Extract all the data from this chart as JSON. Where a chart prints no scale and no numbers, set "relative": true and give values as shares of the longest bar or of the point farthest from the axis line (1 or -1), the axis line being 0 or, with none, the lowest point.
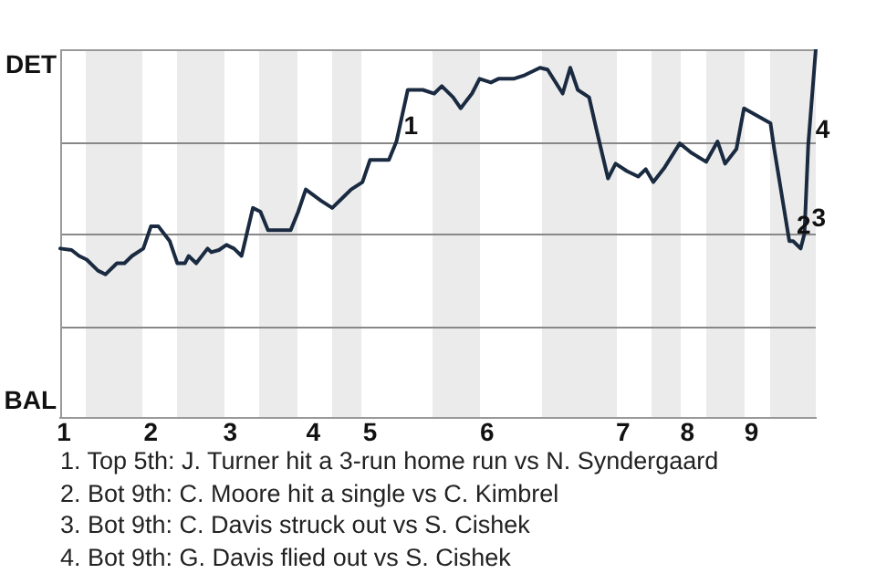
{
  "chart_data": {
    "type": "line",
    "relative": true,
    "categories": [
      null,
      "1",
      null,
      null,
      null,
      null,
      null,
      null,
      null,
      null,
      null,
      null,
      null,
      null,
      null,
      null,
      null,
      null,
      null,
      null,
      null,
      null,
      null,
      null,
      "2",
      null,
      null,
      null,
      null,
      null,
      null,
      null,
      null,
      null,
      null,
      null,
      null,
      null,
      null,
      null,
      null,
      null,
      null,
      null,
      null,
      "3",
      null,
      null,
      null,
      null,
      null,
      null,
      null,
      null,
      null,
      null,
      null,
      null,
      null,
      null,
      null,
      null,
      null,
      null,
      null,
      null,
      null,
      "4",
      null,
      null,
      null,
      null,
      null,
      null,
      null,
      null,
      null,
      null,
      null,
      null,
      null,
      null,
      "5",
      null,
      null,
      null,
      null,
      null,
      null,
      null,
      null,
      null,
      null,
      null,
      null,
      null,
      null,
      null,
      null,
      null,
      null,
      null,
      null,
      null,
      null,
      null,
      null,
      null,
      null,
      null,
      null,
      null,
      null,
      "6",
      null,
      null,
      null,
      null,
      null,
      null,
      null,
      null,
      null,
      null,
      null,
      null,
      null,
      null,
      null,
      null,
      null,
      null,
      null,
      null,
      null,
      null,
      null,
      null,
      null,
      null,
      null,
      null,
      null,
      null,
      null,
      null,
      null,
      null,
      null,
      "7",
      null,
      null,
      null,
      null,
      null,
      null,
      null,
      null,
      null,
      null,
      null,
      null,
      null,
      null,
      null,
      null,
      "8",
      null,
      null,
      null,
      null,
      null,
      null,
      null,
      null,
      null,
      null,
      null,
      null,
      null,
      null,
      null,
      null,
      "9",
      null,
      null,
      null,
      null,
      null,
      null,
      null,
      null,
      null,
      null,
      null,
      null,
      null,
      null,
      null,
      null,
      null
    ],
    "series": [
      {
        "color": "#1a2a40",
        "values": [
          0.46,
          null,
          null,
          0.456,
          null,
          0.44,
          null,
          0.43,
          null,
          null,
          0.4,
          null,
          0.39,
          null,
          null,
          0.42,
          null,
          0.42,
          null,
          0.44,
          null,
          null,
          0.46,
          null,
          0.52,
          null,
          0.52,
          null,
          null,
          0.48,
          null,
          0.42,
          null,
          0.42,
          0.44,
          null,
          0.42,
          null,
          null,
          0.46,
          0.45,
          null,
          0.456,
          null,
          0.47,
          null,
          0.46,
          null,
          0.44,
          null,
          null,
          0.57,
          null,
          0.56,
          null,
          0.51,
          null,
          null,
          null,
          null,
          null,
          0.51,
          null,
          0.56,
          null,
          0.62,
          null,
          null,
          null,
          0.59,
          null,
          null,
          0.57,
          null,
          null,
          0.6,
          null,
          0.62,
          null,
          null,
          0.64,
          null,
          0.7,
          null,
          null,
          null,
          null,
          0.7,
          null,
          0.75,
          null,
          null,
          0.89,
          null,
          null,
          null,
          0.89,
          null,
          null,
          0.88,
          null,
          0.9,
          null,
          null,
          0.87,
          null,
          0.84,
          null,
          null,
          0.88,
          null,
          0.92,
          null,
          null,
          0.91,
          null,
          0.92,
          null,
          null,
          null,
          0.92,
          null,
          null,
          0.93,
          null,
          null,
          null,
          0.95,
          null,
          0.945,
          null,
          null,
          null,
          0.88,
          null,
          0.95,
          null,
          0.89,
          null,
          null,
          0.87,
          null,
          0.78,
          null,
          null,
          0.65,
          null,
          0.69,
          null,
          null,
          0.67,
          null,
          null,
          0.655,
          null,
          0.675,
          null,
          0.64,
          null,
          null,
          0.68,
          null,
          null,
          null,
          0.745,
          null,
          null,
          0.72,
          null,
          null,
          null,
          0.695,
          null,
          null,
          0.75,
          null,
          0.69,
          null,
          null,
          0.73,
          null,
          0.84,
          null,
          null,
          null,
          null,
          null,
          null,
          0.8,
          0.73,
          null,
          null,
          null,
          0.48,
          0.48,
          null,
          0.46,
          0.5,
          0.74,
          null,
          1.0
        ],
        "value_labels": [
          null,
          null,
          null,
          null,
          null,
          null,
          null,
          null,
          null,
          null,
          null,
          null,
          null,
          null,
          null,
          null,
          null,
          null,
          null,
          null,
          null,
          null,
          null,
          null,
          null,
          null,
          null,
          null,
          null,
          null,
          null,
          null,
          null,
          null,
          null,
          null,
          null,
          null,
          null,
          null,
          null,
          null,
          null,
          null,
          null,
          null,
          null,
          null,
          null,
          null,
          null,
          null,
          null,
          null,
          null,
          null,
          null,
          null,
          null,
          null,
          null,
          null,
          null,
          null,
          null,
          null,
          null,
          null,
          null,
          null,
          null,
          null,
          null,
          null,
          null,
          null,
          null,
          null,
          null,
          null,
          null,
          null,
          null,
          null,
          null,
          null,
          null,
          null,
          null,
          null,
          null,
          null,
          null,
          null,
          null,
          null,
          null,
          null,
          null,
          null,
          null,
          null,
          null,
          null,
          null,
          null,
          null,
          null,
          null,
          null,
          null,
          null,
          null,
          null,
          null,
          null,
          null,
          null,
          null,
          null,
          null,
          null,
          null,
          null,
          null,
          null,
          null,
          null,
          null,
          null,
          null,
          null,
          null,
          null,
          null,
          null,
          null,
          null,
          null,
          null,
          null,
          null,
          null,
          null,
          null,
          null,
          null,
          null,
          null,
          null,
          null,
          null,
          null,
          null,
          null,
          null,
          null,
          null,
          null,
          null,
          null,
          null,
          null,
          null,
          null,
          null,
          null,
          null,
          null,
          null,
          null,
          null,
          null,
          null,
          null,
          null,
          null,
          null,
          null,
          null,
          null,
          null,
          null,
          null,
          null,
          null,
          null,
          null,
          null,
          null,
          null,
          null,
          null,
          null,
          null,
          null,
          null,
          null,
          null,
          null,
          null
        ]
      }
    ],
    "ref_lines": [
      {
        "axis": "y",
        "value": 0.25,
        "color": "#888888"
      },
      {
        "axis": "y",
        "value": 0.5,
        "color": "#888888"
      },
      {
        "axis": "y",
        "value": 0.75,
        "color": "#888888"
      }
    ],
    "annotations": [
      "DET",
      "BAL",
      {
        "text": "1",
        "x": "5",
        "y": 0.75
      },
      {
        "text": "2",
        "x": "9",
        "y": 0.48
      },
      {
        "text": "3",
        "x": "9",
        "y": 0.5
      },
      {
        "text": "4",
        "x": "9",
        "y": 0.74
      },
      "1. Top 5th: J. Turner hit a 3-run home run vs N. Syndergaard",
      "2. Bot 9th: C. Moore hit a single vs C. Kimbrel",
      "3. Bot 9th: C. Davis struck out vs S. Cishek",
      "4. Bot 9th: G. Davis flied out vs S. Cishek"
    ],
    "legend": false,
    "marker": "none",
    "line_style": "solid"
  }
}
